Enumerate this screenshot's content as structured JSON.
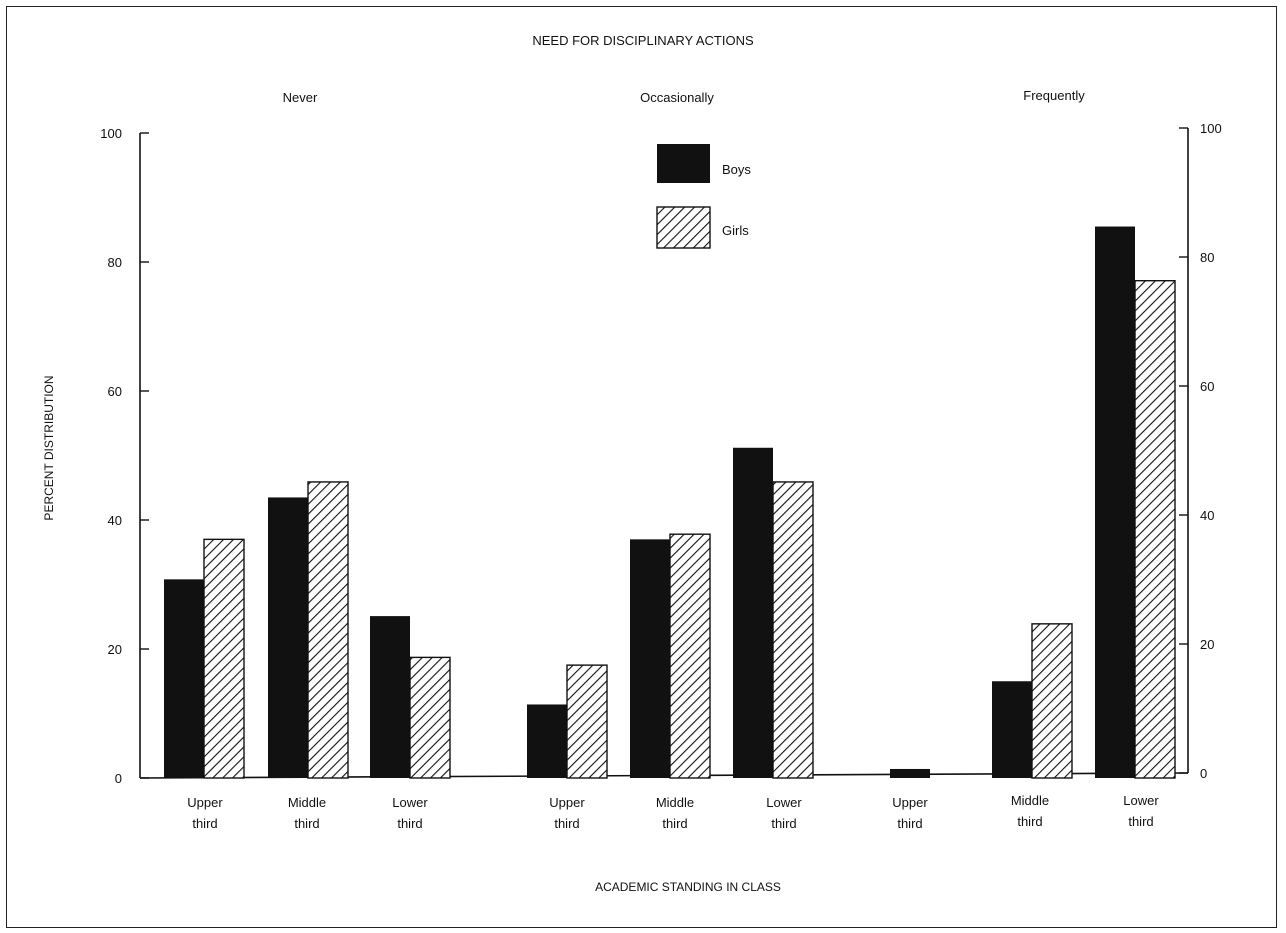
{
  "chart_data": {
    "type": "bar",
    "title": "NEED FOR DISCIPLINARY ACTIONS",
    "xlabel": "ACADEMIC STANDING IN CLASS",
    "ylabel": "PERCENT DISTRIBUTION",
    "ylim": [
      0,
      100
    ],
    "yticks": [
      "0",
      "20",
      "40",
      "60",
      "80",
      "100"
    ],
    "grid": false,
    "legend_position": "top-center",
    "groups": [
      "Never",
      "Occasionally",
      "Frequently"
    ],
    "categories": [
      "Upper third",
      "Middle third",
      "Lower third",
      "Upper third",
      "Middle third",
      "Lower third",
      "Upper third",
      "Middle third",
      "Lower third"
    ],
    "category_lines": [
      [
        "Upper",
        "third"
      ],
      [
        "Middle",
        "third"
      ],
      [
        "Lower",
        "third"
      ],
      [
        "Upper",
        "third"
      ],
      [
        "Middle",
        "third"
      ],
      [
        "Lower",
        "third"
      ],
      [
        "Upper",
        "third"
      ],
      [
        "Middle",
        "third"
      ],
      [
        "Lower",
        "third"
      ]
    ],
    "series": [
      {
        "name": "Boys",
        "pattern": "solid",
        "color": "#111111",
        "values": [
          30.8,
          43.5,
          25.1,
          11.4,
          37.0,
          51.2,
          1.4,
          15.0,
          85.5
        ]
      },
      {
        "name": "Girls",
        "pattern": "hatch",
        "color": "#111111",
        "values": [
          37.0,
          45.9,
          18.7,
          17.5,
          37.8,
          45.9,
          0,
          23.9,
          77.1
        ]
      }
    ]
  }
}
